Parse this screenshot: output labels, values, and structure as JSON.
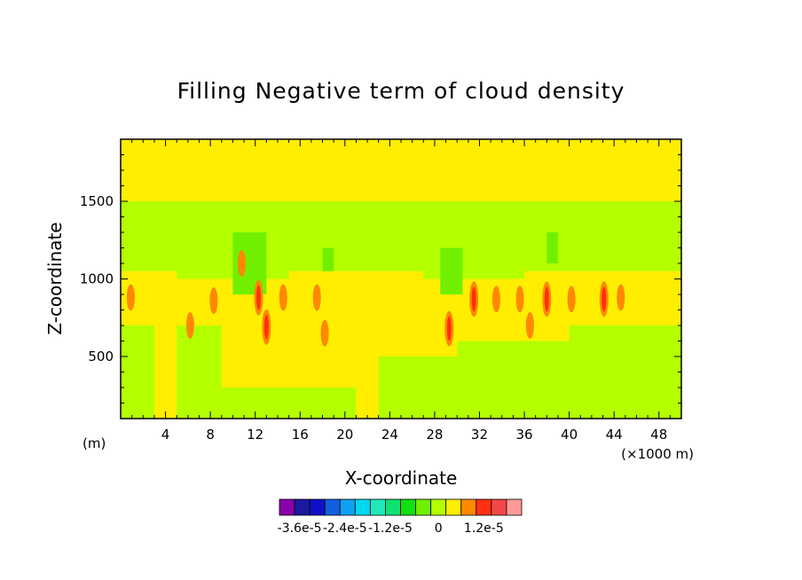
{
  "chart_data": {
    "type": "heatmap",
    "title": "Filling Negative term of cloud density",
    "xlabel": "X-coordinate",
    "ylabel": "Z-coordinate",
    "x_unit_label": "(m)",
    "x_scale_label": "(×1000 m)",
    "xlim": [
      0,
      50
    ],
    "ylim": [
      100,
      1900
    ],
    "x_ticks": [
      4,
      8,
      12,
      16,
      20,
      24,
      28,
      32,
      36,
      40,
      44,
      48
    ],
    "x_tick_labels": [
      "4",
      "8",
      "12",
      "16",
      "20",
      "24",
      "28",
      "32",
      "36",
      "40",
      "44",
      "48"
    ],
    "y_ticks": [
      500,
      1000,
      1500
    ],
    "y_tick_labels": [
      "500",
      "1000",
      "1500"
    ],
    "background_value": 0,
    "regions": [
      {
        "x": [
          0.3,
          50
        ],
        "z": [
          1500,
          1900
        ],
        "level": 0
      },
      {
        "x": [
          0,
          50
        ],
        "z": [
          1050,
          1500
        ],
        "level": -1
      },
      {
        "x": [
          5,
          15
        ],
        "z": [
          1000,
          1500
        ],
        "level": -1
      },
      {
        "x": [
          27,
          36
        ],
        "z": [
          1000,
          1500
        ],
        "level": -1
      },
      {
        "x": [
          0,
          3
        ],
        "z": [
          100,
          700
        ],
        "level": -1
      },
      {
        "x": [
          5,
          9
        ],
        "z": [
          100,
          700
        ],
        "level": -1
      },
      {
        "x": [
          9,
          21
        ],
        "z": [
          100,
          300
        ],
        "level": -1
      },
      {
        "x": [
          23,
          30
        ],
        "z": [
          100,
          500
        ],
        "level": -1
      },
      {
        "x": [
          30,
          40
        ],
        "z": [
          100,
          600
        ],
        "level": -1
      },
      {
        "x": [
          40,
          50
        ],
        "z": [
          100,
          700
        ],
        "level": -1
      },
      {
        "x": [
          10,
          13
        ],
        "z": [
          900,
          1300
        ],
        "level": -2
      },
      {
        "x": [
          18,
          19
        ],
        "z": [
          1050,
          1200
        ],
        "level": -2
      },
      {
        "x": [
          28.5,
          30.5
        ],
        "z": [
          900,
          1200
        ],
        "level": -2
      },
      {
        "x": [
          38,
          39
        ],
        "z": [
          1100,
          1300
        ],
        "level": -2
      }
    ],
    "hotspots": [
      {
        "x": 0.9,
        "z": 880,
        "level": 1
      },
      {
        "x": 6.2,
        "z": 700,
        "level": 1
      },
      {
        "x": 8.3,
        "z": 860,
        "level": 1
      },
      {
        "x": 10.8,
        "z": 1100,
        "level": 1
      },
      {
        "x": 12.3,
        "z": 880,
        "level": 2
      },
      {
        "x": 13.0,
        "z": 690,
        "level": 2
      },
      {
        "x": 14.5,
        "z": 880,
        "level": 1
      },
      {
        "x": 17.5,
        "z": 880,
        "level": 1
      },
      {
        "x": 18.2,
        "z": 650,
        "level": 1
      },
      {
        "x": 29.3,
        "z": 680,
        "level": 2
      },
      {
        "x": 31.5,
        "z": 870,
        "level": 2
      },
      {
        "x": 33.5,
        "z": 870,
        "level": 1
      },
      {
        "x": 35.6,
        "z": 870,
        "level": 1
      },
      {
        "x": 36.5,
        "z": 700,
        "level": 1
      },
      {
        "x": 38.0,
        "z": 870,
        "level": 2
      },
      {
        "x": 40.2,
        "z": 870,
        "level": 1
      },
      {
        "x": 43.1,
        "z": 870,
        "level": 2
      },
      {
        "x": 44.6,
        "z": 880,
        "level": 1
      }
    ],
    "colorbar": {
      "colors": [
        "#8800aa",
        "#1a1aa0",
        "#1010c8",
        "#1060e0",
        "#10a0f0",
        "#00d8f0",
        "#20e8b8",
        "#10e070",
        "#10e010",
        "#70f000",
        "#b4ff00",
        "#ffee00",
        "#ff8800",
        "#ff3010",
        "#f04848",
        "#ff9999"
      ],
      "labels": [
        "-3.6e-5",
        "-2.4e-5",
        "-1.2e-5",
        "0",
        "1.2e-5"
      ]
    }
  }
}
